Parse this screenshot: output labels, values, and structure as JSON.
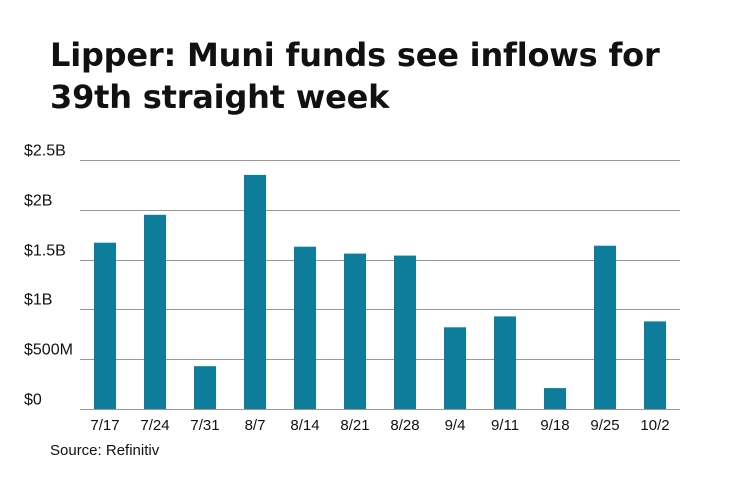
{
  "chart_data": {
    "type": "bar",
    "title": "Lipper: Muni funds see inflows for 39th straight week",
    "source": "Source: Refinitiv",
    "categories": [
      "7/17",
      "7/24",
      "7/31",
      "8/7",
      "8/14",
      "8/21",
      "8/28",
      "9/4",
      "9/11",
      "9/18",
      "9/25",
      "10/2"
    ],
    "values": [
      1.67,
      1.95,
      0.43,
      2.35,
      1.63,
      1.56,
      1.54,
      0.82,
      0.93,
      0.21,
      1.64,
      0.88
    ],
    "units": "billions USD",
    "ylim": [
      0,
      2.5
    ],
    "y_ticks": [
      {
        "value": 0,
        "label": "$0"
      },
      {
        "value": 0.5,
        "label": "$500M"
      },
      {
        "value": 1.0,
        "label": "$1B"
      },
      {
        "value": 1.5,
        "label": "$1.5B"
      },
      {
        "value": 2.0,
        "label": "$2B"
      },
      {
        "value": 2.5,
        "label": "$2.5B"
      }
    ],
    "grid": true,
    "colors": {
      "bar": "#0e7d9b",
      "grid": "#999999",
      "text": "#111111"
    }
  }
}
